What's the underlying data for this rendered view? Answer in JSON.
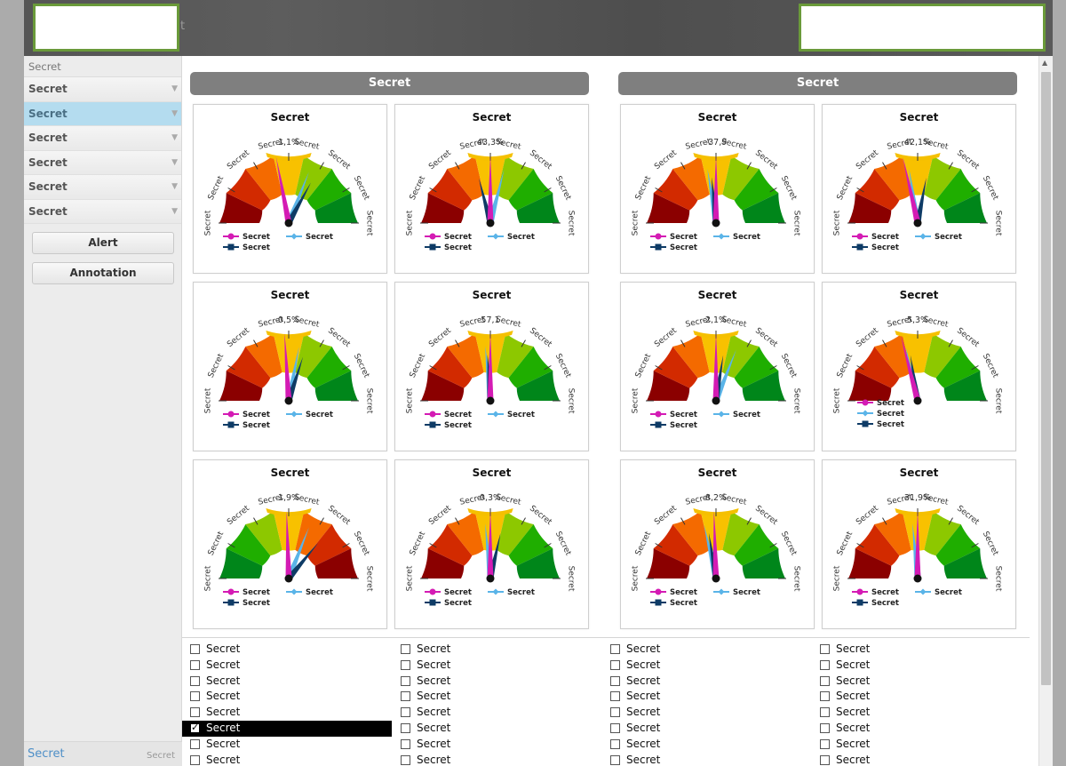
{
  "header": {
    "title_fragment": "t"
  },
  "sidebar": {
    "heading": "Secret",
    "items": [
      {
        "label": "Secret",
        "active": false
      },
      {
        "label": "Secret",
        "active": true
      },
      {
        "label": "Secret",
        "active": false
      },
      {
        "label": "Secret",
        "active": false
      },
      {
        "label": "Secret",
        "active": false
      },
      {
        "label": "Secret",
        "active": false
      }
    ],
    "buttons": {
      "alert": "Alert",
      "annotation": "Annotation"
    },
    "footer": {
      "left": "Secret",
      "right": "Secret"
    }
  },
  "groups": [
    {
      "title": "Secret"
    },
    {
      "title": "Secret"
    }
  ],
  "colors": {
    "band_dark_red": "#8b0000",
    "band_red": "#d22a00",
    "band_orange": "#f46a00",
    "band_yellow": "#f8c100",
    "band_lightgreen": "#8dc800",
    "band_green": "#1fae00",
    "band_darkgreen": "#00861a",
    "needle_magenta": "#d41bb4",
    "needle_light_blue": "#5ab4e8",
    "needle_navy": "#0e3b66",
    "arc_top": "#f5c000"
  },
  "legend": {
    "item1": "Secret",
    "item2": "Secret",
    "item3": "Secret"
  },
  "gauges": [
    {
      "title": "Secret",
      "value_label": "1,1%",
      "scale_labels": [
        "Secret",
        "Secret",
        "Secret",
        "Secret",
        "Secret",
        "Secret",
        "Secret",
        "Secret"
      ],
      "direction": "red-to-green",
      "needles": {
        "magenta": 0.44,
        "light_blue": 0.62,
        "navy": 0.66
      },
      "legend_layout": "row"
    },
    {
      "title": "Secret",
      "value_label": "43,3%",
      "scale_labels": [
        "Secret",
        "Secret",
        "Secret",
        "Secret",
        "Secret",
        "Secret",
        "Secret",
        "Secret"
      ],
      "direction": "red-to-green",
      "needles": {
        "magenta": 0.5,
        "light_blue": 0.58,
        "navy": 0.42
      },
      "legend_layout": "row"
    },
    {
      "title": "Secret",
      "value_label": "-37,9",
      "scale_labels": [
        "Secret",
        "Secret",
        "Secret",
        "Secret",
        "Secret",
        "Secret",
        "Secret",
        "Secret"
      ],
      "direction": "red-to-green",
      "needles": {
        "magenta": 0.5,
        "light_blue": 0.45,
        "navy": 0.47
      },
      "legend_layout": "row"
    },
    {
      "title": "Secret",
      "value_label": "42,1%",
      "scale_labels": [
        "Secret",
        "Secret",
        "Secret",
        "Secret",
        "Secret",
        "Secret",
        "Secret",
        "Secret"
      ],
      "direction": "red-to-green",
      "needles": {
        "magenta": 0.43,
        "light_blue": 0.45,
        "navy": 0.56
      },
      "legend_layout": "row"
    },
    {
      "title": "Secret",
      "value_label": "0,5%",
      "scale_labels": [
        "Secret",
        "Secret",
        "Secret",
        "Secret",
        "Secret",
        "Secret",
        "Secret",
        "Secret"
      ],
      "direction": "red-to-green",
      "needles": {
        "magenta": 0.48,
        "light_blue": 0.56,
        "navy": 0.6
      },
      "legend_layout": "row"
    },
    {
      "title": "Secret",
      "value_label": "57,1",
      "scale_labels": [
        "Secret",
        "Secret",
        "Secret",
        "Secret",
        "Secret",
        "Secret",
        "Secret",
        "Secret"
      ],
      "direction": "red-to-green",
      "needles": {
        "magenta": 0.5,
        "light_blue": 0.47,
        "navy": 0.48
      },
      "legend_layout": "row"
    },
    {
      "title": "Secret",
      "value_label": "2,1%",
      "scale_labels": [
        "Secret",
        "Secret",
        "Secret",
        "Secret",
        "Secret",
        "Secret",
        "Secret",
        "Secret"
      ],
      "direction": "red-to-green",
      "needles": {
        "magenta": 0.5,
        "light_blue": 0.62,
        "navy": 0.55
      },
      "legend_layout": "row"
    },
    {
      "title": "Secret",
      "value_label": "5,3%",
      "scale_labels": [
        "Secret",
        "Secret",
        "Secret",
        "Secret",
        "Secret",
        "Secret",
        "Secret",
        "Secret"
      ],
      "direction": "red-to-green",
      "needles": {
        "magenta": 0.42,
        "light_blue": 0.43,
        "navy": 0.45
      },
      "legend_layout": "column"
    },
    {
      "title": "Secret",
      "value_label": "1,9%",
      "scale_labels": [
        "Secret",
        "Secret",
        "Secret",
        "Secret",
        "Secret",
        "Secret",
        "Secret",
        "Secret"
      ],
      "direction": "green-to-red",
      "needles": {
        "magenta": 0.49,
        "light_blue": 0.62,
        "navy": 0.72
      },
      "legend_layout": "row"
    },
    {
      "title": "Secret",
      "value_label": "0,3%",
      "scale_labels": [
        "Secret",
        "Secret",
        "Secret",
        "Secret",
        "Secret",
        "Secret",
        "Secret",
        "Secret"
      ],
      "direction": "red-to-green",
      "needles": {
        "magenta": 0.5,
        "light_blue": 0.47,
        "navy": 0.57
      },
      "legend_layout": "row"
    },
    {
      "title": "Secret",
      "value_label": "8,2%",
      "scale_labels": [
        "Secret",
        "Secret",
        "Secret",
        "Secret",
        "Secret",
        "Secret",
        "Secret",
        "Secret"
      ],
      "direction": "red-to-green",
      "needles": {
        "magenta": 0.49,
        "light_blue": 0.43,
        "navy": 0.45
      },
      "legend_layout": "row"
    },
    {
      "title": "Secret",
      "value_label": "31,9%",
      "scale_labels": [
        "Secret",
        "Secret",
        "Secret",
        "Secret",
        "Secret",
        "Secret",
        "Secret",
        "Secret"
      ],
      "direction": "red-to-green",
      "needles": {
        "magenta": 0.5,
        "light_blue": 0.47,
        "navy": 0.5
      },
      "legend_layout": "row"
    }
  ],
  "checkbox_columns": [
    [
      {
        "label": "Secret",
        "checked": false
      },
      {
        "label": "Secret",
        "checked": false
      },
      {
        "label": "Secret",
        "checked": false
      },
      {
        "label": "Secret",
        "checked": false
      },
      {
        "label": "Secret",
        "checked": false
      },
      {
        "label": "Secret",
        "checked": true
      },
      {
        "label": "Secret",
        "checked": false
      },
      {
        "label": "Secret",
        "checked": false
      }
    ],
    [
      {
        "label": "Secret",
        "checked": false
      },
      {
        "label": "Secret",
        "checked": false
      },
      {
        "label": "Secret",
        "checked": false
      },
      {
        "label": "Secret",
        "checked": false
      },
      {
        "label": "Secret",
        "checked": false
      },
      {
        "label": "Secret",
        "checked": false
      },
      {
        "label": "Secret",
        "checked": false
      },
      {
        "label": "Secret",
        "checked": false
      }
    ],
    [
      {
        "label": "Secret",
        "checked": false
      },
      {
        "label": "Secret",
        "checked": false
      },
      {
        "label": "Secret",
        "checked": false
      },
      {
        "label": "Secret",
        "checked": false
      },
      {
        "label": "Secret",
        "checked": false
      },
      {
        "label": "Secret",
        "checked": false
      },
      {
        "label": "Secret",
        "checked": false
      },
      {
        "label": "Secret",
        "checked": false
      }
    ],
    [
      {
        "label": "Secret",
        "checked": false
      },
      {
        "label": "Secret",
        "checked": false
      },
      {
        "label": "Secret",
        "checked": false
      },
      {
        "label": "Secret",
        "checked": false
      },
      {
        "label": "Secret",
        "checked": false
      },
      {
        "label": "Secret",
        "checked": false
      },
      {
        "label": "Secret",
        "checked": false
      },
      {
        "label": "Secret",
        "checked": false
      }
    ]
  ]
}
